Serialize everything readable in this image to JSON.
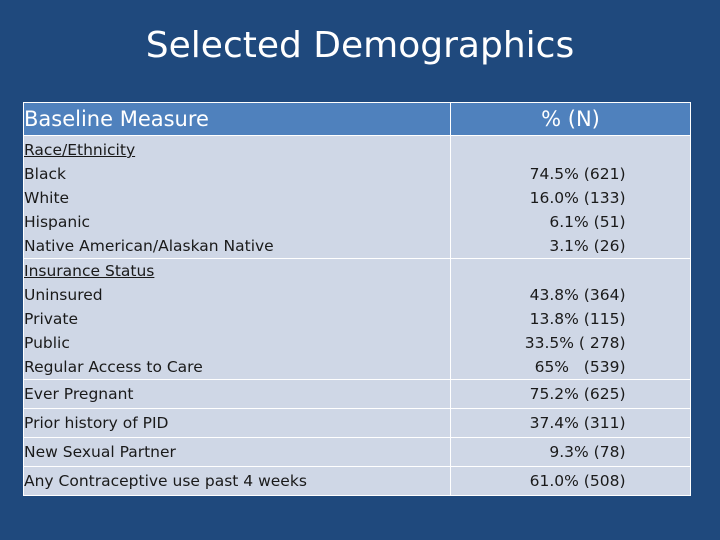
{
  "title": "Selected Demographics",
  "table": {
    "headers": [
      "Baseline Measure",
      "% (N)"
    ],
    "race": {
      "heading": "Race/Ethnicity",
      "rows": [
        {
          "label": "Black",
          "value": "74.5% (621)"
        },
        {
          "label": "White",
          "value": "16.0% (133)"
        },
        {
          "label": "Hispanic",
          "value": "6.1% (51)"
        },
        {
          "label": "Native American/Alaskan Native",
          "value": "3.1% (26)"
        }
      ]
    },
    "insurance": {
      "heading": "Insurance Status",
      "rows": [
        {
          "label": "Uninsured",
          "value": "43.8% (364)"
        },
        {
          "label": "Private",
          "value": "13.8% (115)"
        },
        {
          "label": "Public",
          "value": "33.5% ( 278)"
        },
        {
          "label": "Regular Access to Care",
          "value": "65%   (539)"
        }
      ]
    },
    "single_rows": [
      {
        "label": "Ever Pregnant",
        "value": "75.2% (625)"
      },
      {
        "label": "Prior history of PID",
        "value": "37.4% (311)"
      },
      {
        "label": "New Sexual Partner",
        "value": "9.3% (78)"
      },
      {
        "label": "Any Contraceptive use past 4 weeks",
        "value": "61.0% (508)"
      }
    ]
  }
}
